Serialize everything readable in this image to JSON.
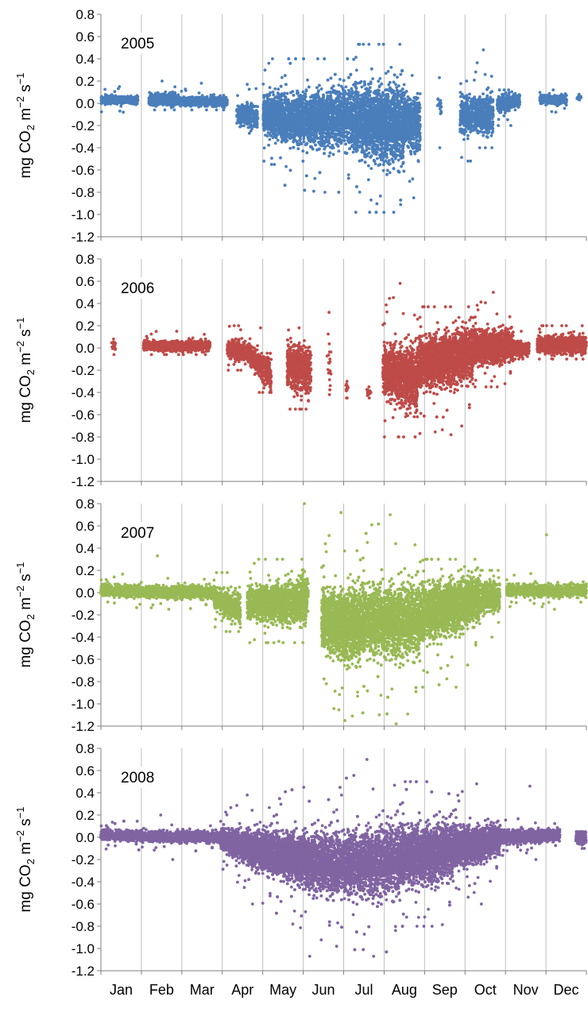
{
  "y_axis_label": {
    "prefix": "mg CO",
    "sub": "2",
    "mid": " m",
    "sup1": "−2",
    "mid2": " s",
    "sup2": "−1"
  },
  "months": [
    "Jan",
    "Feb",
    "Mar",
    "Apr",
    "May",
    "Jun",
    "Jul",
    "Aug",
    "Sep",
    "Oct",
    "Nov",
    "Dec"
  ],
  "chart_data": [
    {
      "type": "scatter",
      "title": "2005",
      "color": "#4a7ebb",
      "ylim": [
        -1.2,
        0.8
      ],
      "yticks": [
        "0.8",
        "0.6",
        "0.4",
        "0.2",
        "0.0",
        "-0.2",
        "-0.4",
        "-0.6",
        "-0.8",
        "-1.0",
        "-1.2"
      ],
      "xlim": [
        0,
        365
      ],
      "grid": true,
      "segments": [
        {
          "x": [
            0,
            28
          ],
          "c": [
            0.03,
            0.03
          ],
          "h": [
            0.05,
            0.05
          ],
          "d": 2,
          "max": 0.15,
          "min": -0.08
        },
        {
          "x": [
            36,
            56
          ],
          "c": [
            0.03,
            0.03
          ],
          "h": [
            0.07,
            0.07
          ],
          "d": 3,
          "max": 0.2,
          "min": -0.06
        },
        {
          "x": [
            56,
            95
          ],
          "c": [
            0.02,
            0.02
          ],
          "h": [
            0.05,
            0.05
          ],
          "d": 3,
          "max": 0.18,
          "min": -0.06
        },
        {
          "x": [
            102,
            118
          ],
          "c": [
            -0.1,
            -0.12
          ],
          "h": [
            0.12,
            0.15
          ],
          "d": 3,
          "max": 0.17,
          "min": -0.27
        },
        {
          "x": [
            122,
            136
          ],
          "c": [
            -0.1,
            -0.12
          ],
          "h": [
            0.2,
            0.25
          ],
          "d": 9,
          "max": 0.4,
          "min": -0.55
        },
        {
          "x": [
            136,
            190
          ],
          "c": [
            -0.15,
            -0.12
          ],
          "h": [
            0.28,
            0.35
          ],
          "d": 9,
          "max": 0.4,
          "min": -0.8
        },
        {
          "x": [
            190,
            228
          ],
          "c": [
            -0.15,
            -0.2
          ],
          "h": [
            0.4,
            0.45
          ],
          "d": 9,
          "max": 0.53,
          "min": -0.98
        },
        {
          "x": [
            228,
            240
          ],
          "c": [
            -0.15,
            -0.2
          ],
          "h": [
            0.3,
            0.35
          ],
          "d": 6,
          "max": 0.25,
          "min": -0.85
        },
        {
          "x": [
            253,
            256
          ],
          "c": [
            0.05,
            -0.05
          ],
          "h": [
            0.15,
            0.1
          ],
          "d": 1,
          "max": 0.23,
          "min": -0.4
        },
        {
          "x": [
            270,
            280
          ],
          "c": [
            -0.1,
            -0.1
          ],
          "h": [
            0.25,
            0.2
          ],
          "d": 4,
          "max": 0.2,
          "min": -0.52
        },
        {
          "x": [
            280,
            295
          ],
          "c": [
            -0.1,
            -0.1
          ],
          "h": [
            0.22,
            0.2
          ],
          "d": 5,
          "max": 0.48,
          "min": -0.4
        },
        {
          "x": [
            298,
            315
          ],
          "c": [
            0.0,
            0.02
          ],
          "h": [
            0.1,
            0.08
          ],
          "d": 4,
          "max": 0.12,
          "min": -0.2
        },
        {
          "x": [
            330,
            350
          ],
          "c": [
            0.03,
            0.03
          ],
          "h": [
            0.05,
            0.05
          ],
          "d": 3,
          "max": 0.12,
          "min": -0.08
        },
        {
          "x": [
            358,
            361
          ],
          "c": [
            0.05,
            0.05
          ],
          "h": [
            0.02,
            0.02
          ],
          "d": 1,
          "max": 0.08,
          "min": 0.03
        }
      ]
    },
    {
      "type": "scatter",
      "title": "2006",
      "color": "#be4b48",
      "ylim": [
        -1.2,
        0.8
      ],
      "yticks": [
        "0.8",
        "0.6",
        "0.4",
        "0.2",
        "0.0",
        "-0.2",
        "-0.4",
        "-0.6",
        "-0.8",
        "-1.0",
        "-1.2"
      ],
      "xlim": [
        0,
        365
      ],
      "grid": true,
      "segments": [
        {
          "x": [
            8,
            11
          ],
          "c": [
            0.02,
            0.02
          ],
          "h": [
            0.06,
            0.06
          ],
          "d": 1,
          "max": 0.08,
          "min": -0.06
        },
        {
          "x": [
            32,
            82
          ],
          "c": [
            0.02,
            0.02
          ],
          "h": [
            0.06,
            0.06
          ],
          "d": 3,
          "max": 0.15,
          "min": -0.06
        },
        {
          "x": [
            95,
            112
          ],
          "c": [
            0.0,
            -0.05
          ],
          "h": [
            0.1,
            0.12
          ],
          "d": 4,
          "max": 0.2,
          "min": -0.2
        },
        {
          "x": [
            112,
            128
          ],
          "c": [
            -0.08,
            -0.25
          ],
          "h": [
            0.12,
            0.18
          ],
          "d": 4,
          "max": 0.18,
          "min": -0.4
        },
        {
          "x": [
            140,
            158
          ],
          "c": [
            -0.15,
            -0.2
          ],
          "h": [
            0.28,
            0.3
          ],
          "d": 5,
          "max": 0.18,
          "min": -0.55
        },
        {
          "x": [
            170,
            173
          ],
          "c": [
            -0.05,
            -0.1
          ],
          "h": [
            0.35,
            0.4
          ],
          "d": 1,
          "max": 0.32,
          "min": -0.42
        },
        {
          "x": [
            184,
            186
          ],
          "c": [
            -0.35,
            -0.35
          ],
          "h": [
            0.05,
            0.05
          ],
          "d": 1,
          "max": -0.3,
          "min": -0.45
        },
        {
          "x": [
            200,
            203
          ],
          "c": [
            -0.4,
            -0.4
          ],
          "h": [
            0.05,
            0.05
          ],
          "d": 1,
          "max": -0.35,
          "min": -0.45
        },
        {
          "x": [
            212,
            238
          ],
          "c": [
            -0.2,
            -0.3
          ],
          "h": [
            0.3,
            0.35
          ],
          "d": 7,
          "max": 0.58,
          "min": -0.8
        },
        {
          "x": [
            238,
            280
          ],
          "c": [
            -0.15,
            -0.05
          ],
          "h": [
            0.3,
            0.3
          ],
          "d": 9,
          "max": 0.37,
          "min": -0.78
        },
        {
          "x": [
            280,
            310
          ],
          "c": [
            0.0,
            0.02
          ],
          "h": [
            0.2,
            0.15
          ],
          "d": 8,
          "max": 0.5,
          "min": -0.35
        },
        {
          "x": [
            310,
            322
          ],
          "c": [
            0.0,
            0.0
          ],
          "h": [
            0.1,
            0.08
          ],
          "d": 3,
          "max": 0.15,
          "min": -0.1
        },
        {
          "x": [
            328,
            365
          ],
          "c": [
            0.03,
            0.03
          ],
          "h": [
            0.1,
            0.1
          ],
          "d": 4,
          "max": 0.2,
          "min": -0.1
        }
      ]
    },
    {
      "type": "scatter",
      "title": "2007",
      "color": "#98b954",
      "ylim": [
        -1.2,
        0.8
      ],
      "yticks": [
        "0.8",
        "0.6",
        "0.4",
        "0.2",
        "0.0",
        "-0.2",
        "-0.4",
        "-0.6",
        "-0.8",
        "-1.0",
        "-1.2"
      ],
      "xlim": [
        0,
        365
      ],
      "grid": true,
      "segments": [
        {
          "x": [
            0,
            85
          ],
          "c": [
            0.02,
            0.0
          ],
          "h": [
            0.07,
            0.07
          ],
          "d": 3,
          "max": 0.33,
          "min": -0.15
        },
        {
          "x": [
            85,
            105
          ],
          "c": [
            -0.05,
            -0.15
          ],
          "h": [
            0.12,
            0.18
          ],
          "d": 4,
          "max": 0.18,
          "min": -0.35
        },
        {
          "x": [
            110,
            155
          ],
          "c": [
            -0.1,
            -0.08
          ],
          "h": [
            0.2,
            0.25
          ],
          "d": 5,
          "max": 0.3,
          "min": -0.45
        },
        {
          "x": [
            150,
            156
          ],
          "c": [
            0.0,
            0.0
          ],
          "h": [
            0.25,
            0.25
          ],
          "d": 2,
          "max": 0.8,
          "min": -0.3
        },
        {
          "x": [
            166,
            195
          ],
          "c": [
            -0.25,
            -0.3
          ],
          "h": [
            0.35,
            0.4
          ],
          "d": 9,
          "max": 0.72,
          "min": -1.15
        },
        {
          "x": [
            195,
            240
          ],
          "c": [
            -0.25,
            -0.25
          ],
          "h": [
            0.4,
            0.4
          ],
          "d": 9,
          "max": 0.7,
          "min": -1.18
        },
        {
          "x": [
            240,
            285
          ],
          "c": [
            -0.2,
            -0.05
          ],
          "h": [
            0.35,
            0.25
          ],
          "d": 9,
          "max": 0.3,
          "min": -0.85
        },
        {
          "x": [
            285,
            300
          ],
          "c": [
            -0.05,
            -0.02
          ],
          "h": [
            0.2,
            0.15
          ],
          "d": 4,
          "max": 0.2,
          "min": -0.4
        },
        {
          "x": [
            305,
            365
          ],
          "c": [
            0.02,
            0.02
          ],
          "h": [
            0.07,
            0.07
          ],
          "d": 3,
          "max": 0.52,
          "min": -0.15
        }
      ]
    },
    {
      "type": "scatter",
      "title": "2008",
      "color": "#8064a2",
      "ylim": [
        -1.2,
        0.8
      ],
      "yticks": [
        "0.8",
        "0.6",
        "0.4",
        "0.2",
        "0.0",
        "-0.2",
        "-0.4",
        "-0.6",
        "-0.8",
        "-1.0",
        "-1.2"
      ],
      "xlim": [
        0,
        365
      ],
      "grid": true,
      "segments": [
        {
          "x": [
            0,
            90
          ],
          "c": [
            0.02,
            0.0
          ],
          "h": [
            0.06,
            0.06
          ],
          "d": 4,
          "max": 0.2,
          "min": -0.2
        },
        {
          "x": [
            90,
            130
          ],
          "c": [
            -0.02,
            -0.15
          ],
          "h": [
            0.12,
            0.25
          ],
          "d": 7,
          "max": 0.38,
          "min": -0.6
        },
        {
          "x": [
            130,
            175
          ],
          "c": [
            -0.15,
            -0.25
          ],
          "h": [
            0.25,
            0.35
          ],
          "d": 9,
          "max": 0.45,
          "min": -1.07
        },
        {
          "x": [
            175,
            225
          ],
          "c": [
            -0.25,
            -0.2
          ],
          "h": [
            0.35,
            0.4
          ],
          "d": 9,
          "max": 0.7,
          "min": -1.07
        },
        {
          "x": [
            225,
            265
          ],
          "c": [
            -0.18,
            -0.12
          ],
          "h": [
            0.35,
            0.3
          ],
          "d": 9,
          "max": 0.5,
          "min": -0.8
        },
        {
          "x": [
            265,
            300
          ],
          "c": [
            -0.1,
            -0.02
          ],
          "h": [
            0.25,
            0.15
          ],
          "d": 7,
          "max": 0.48,
          "min": -0.6
        },
        {
          "x": [
            300,
            345
          ],
          "c": [
            0.0,
            0.02
          ],
          "h": [
            0.08,
            0.06
          ],
          "d": 5,
          "max": 0.46,
          "min": -0.2
        },
        {
          "x": [
            357,
            365
          ],
          "c": [
            0.0,
            0.0
          ],
          "h": [
            0.08,
            0.08
          ],
          "d": 2,
          "max": 0.05,
          "min": -0.1
        }
      ]
    }
  ]
}
